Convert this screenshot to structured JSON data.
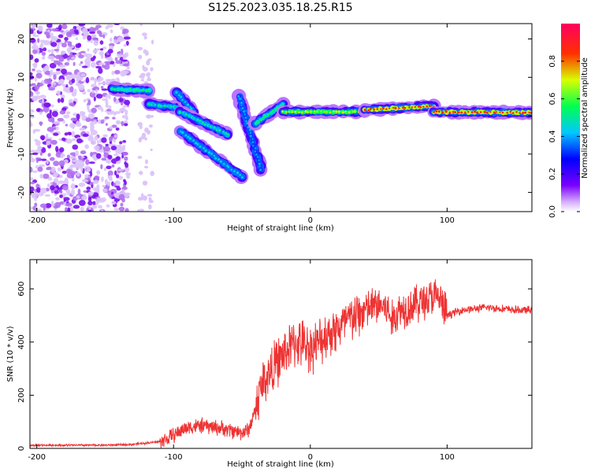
{
  "title": "S125.2023.035.18.25.R15",
  "chart_data": [
    {
      "type": "heatmap",
      "xlabel": "Height of straight line (km)",
      "ylabel": "Frequency (Hz)",
      "xlim": [
        -205,
        162
      ],
      "ylim": [
        -25,
        24
      ],
      "xticks": [
        -200,
        -100,
        0,
        100
      ],
      "yticks": [
        -20,
        -10,
        0,
        10,
        20
      ],
      "noise_region": {
        "x_range": [
          -205,
          -115
        ],
        "y_range": [
          -25,
          24
        ]
      },
      "features": [
        {
          "x0": -145,
          "y0": 7,
          "x1": -118,
          "y1": 6.5,
          "amplitude": 0.55
        },
        {
          "x0": -118,
          "y0": 3,
          "x1": -95,
          "y1": 2,
          "amplitude": 0.5
        },
        {
          "x0": -98,
          "y0": 6,
          "x1": -85,
          "y1": 1,
          "amplitude": 0.45
        },
        {
          "x0": -95,
          "y0": 1,
          "x1": -60,
          "y1": -5,
          "amplitude": 0.5
        },
        {
          "x0": -95,
          "y0": -4,
          "x1": -50,
          "y1": -16,
          "amplitude": 0.45
        },
        {
          "x0": -52,
          "y0": 5,
          "x1": -36,
          "y1": -14,
          "amplitude": 0.4
        },
        {
          "x0": -40,
          "y0": -2,
          "x1": -20,
          "y1": 3,
          "amplitude": 0.55
        },
        {
          "x0": -20,
          "y0": 1,
          "x1": 40,
          "y1": 1,
          "amplitude": 0.7
        },
        {
          "x0": 40,
          "y0": 1.5,
          "x1": 90,
          "y1": 2.5,
          "amplitude": 0.85
        },
        {
          "x0": 90,
          "y0": 1,
          "x1": 162,
          "y1": 0.8,
          "amplitude": 0.85
        }
      ],
      "colorbar": {
        "label": "Normalized spectral amplitude",
        "range": [
          0,
          1
        ],
        "ticks": [
          0.0,
          0.2,
          0.4,
          0.6,
          0.8
        ],
        "tick_labels": [
          "0.0",
          "0.2",
          "0.4",
          "0.6",
          "0.8"
        ]
      }
    },
    {
      "type": "line",
      "xlabel": "Height of straight line (km)",
      "ylabel": "SNR (10 * v/v)",
      "xlim": [
        -205,
        162
      ],
      "ylim": [
        0,
        710
      ],
      "xticks": [
        -200,
        -100,
        0,
        100
      ],
      "yticks": [
        0,
        200,
        400,
        600
      ],
      "color": "#ee3333",
      "series": [
        {
          "x": [
            -205,
            -180,
            -160,
            -140,
            -130,
            -120,
            -110,
            -105,
            -100,
            -95,
            -90,
            -80,
            -70,
            -60,
            -50,
            -45,
            -40,
            -35,
            -30,
            -25,
            -20,
            -15,
            -10,
            -5,
            0,
            5,
            10,
            15,
            20,
            25,
            30,
            35,
            40,
            45,
            50,
            55,
            60,
            65,
            70,
            75,
            80,
            85,
            90,
            95,
            98,
            100,
            105,
            110,
            120,
            130,
            140,
            150,
            162
          ],
          "y": [
            12,
            12,
            12,
            13,
            15,
            20,
            25,
            35,
            50,
            65,
            80,
            85,
            80,
            70,
            60,
            70,
            150,
            250,
            280,
            320,
            350,
            380,
            400,
            390,
            380,
            390,
            420,
            440,
            450,
            470,
            490,
            500,
            520,
            530,
            540,
            530,
            480,
            520,
            530,
            540,
            550,
            560,
            570,
            560,
            520,
            500,
            510,
            520,
            525,
            530,
            525,
            520,
            520
          ]
        }
      ]
    }
  ]
}
